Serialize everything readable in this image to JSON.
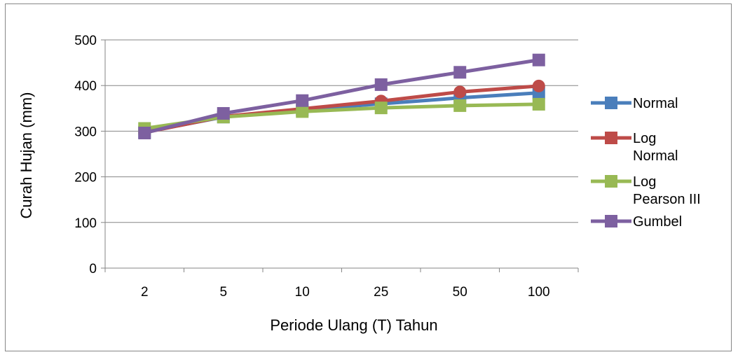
{
  "chart_data": {
    "type": "line",
    "title": "",
    "xlabel": "Periode Ulang  (T) Tahun",
    "ylabel": "Curah Hujan (mm)",
    "categories": [
      "2",
      "5",
      "10",
      "25",
      "50",
      "100"
    ],
    "ylim": [
      0,
      500
    ],
    "yticks": [
      0,
      100,
      200,
      300,
      400,
      500
    ],
    "grid": true,
    "legend_position": "right",
    "series": [
      {
        "name": "Normal",
        "color": "#4a7ebb",
        "marker": "square",
        "values": [
          298,
          331,
          347,
          360,
          373,
          384
        ]
      },
      {
        "name": "Log Normal",
        "legend_lines": [
          "Log",
          "Normal"
        ],
        "color": "#be4b48",
        "marker": "circle",
        "values": [
          297,
          332,
          349,
          366,
          386,
          399
        ]
      },
      {
        "name": "Log Pearson III",
        "legend_lines": [
          "Log",
          "Pearson III"
        ],
        "color": "#98b954",
        "marker": "square",
        "values": [
          306,
          331,
          343,
          351,
          356,
          359
        ]
      },
      {
        "name": "Gumbel",
        "color": "#7d60a0",
        "marker": "square",
        "values": [
          296,
          339,
          367,
          402,
          429,
          456
        ]
      }
    ]
  }
}
